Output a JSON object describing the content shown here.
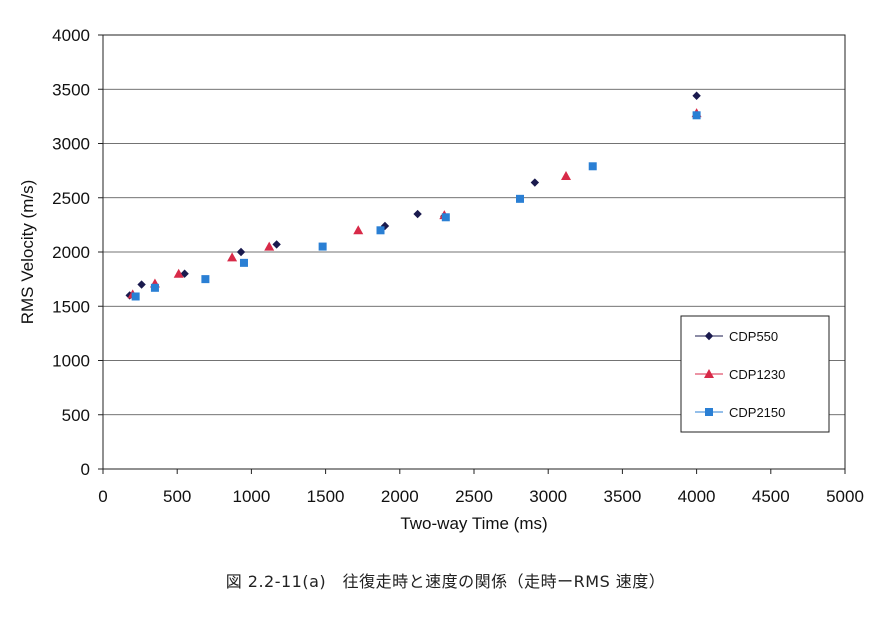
{
  "chart_data": {
    "type": "scatter",
    "xlabel": "Two-way Time (ms)",
    "ylabel": "RMS Velocity (m/s)",
    "xlim": [
      0,
      5000
    ],
    "ylim": [
      0,
      4000
    ],
    "x_ticks": [
      0,
      500,
      1000,
      1500,
      2000,
      2500,
      3000,
      3500,
      4000,
      4500,
      5000
    ],
    "y_ticks": [
      0,
      500,
      1000,
      1500,
      2000,
      2500,
      3000,
      3500,
      4000
    ],
    "grid": "horizontal",
    "legend_position": "bottom-right",
    "series": [
      {
        "name": "CDP550",
        "color": "#1a1a4e",
        "marker": "diamond",
        "points": [
          [
            180,
            1600
          ],
          [
            260,
            1700
          ],
          [
            550,
            1800
          ],
          [
            930,
            2000
          ],
          [
            1170,
            2070
          ],
          [
            1900,
            2240
          ],
          [
            2120,
            2350
          ],
          [
            2300,
            2330
          ],
          [
            2910,
            2640
          ],
          [
            4000,
            3440
          ]
        ]
      },
      {
        "name": "CDP1230",
        "color": "#d82a48",
        "marker": "triangle",
        "points": [
          [
            200,
            1610
          ],
          [
            350,
            1710
          ],
          [
            510,
            1800
          ],
          [
            870,
            1950
          ],
          [
            1120,
            2050
          ],
          [
            1720,
            2200
          ],
          [
            2300,
            2340
          ],
          [
            3120,
            2700
          ],
          [
            4000,
            3280
          ]
        ]
      },
      {
        "name": "CDP2150",
        "color": "#2a7fd4",
        "marker": "square",
        "points": [
          [
            220,
            1590
          ],
          [
            350,
            1670
          ],
          [
            690,
            1750
          ],
          [
            950,
            1900
          ],
          [
            1480,
            2050
          ],
          [
            1870,
            2200
          ],
          [
            2310,
            2320
          ],
          [
            2810,
            2490
          ],
          [
            3300,
            2790
          ],
          [
            4000,
            3260
          ]
        ]
      }
    ]
  },
  "caption": "図 2.2-11(a)　往復走時と速度の関係（走時ーRMS 速度）"
}
